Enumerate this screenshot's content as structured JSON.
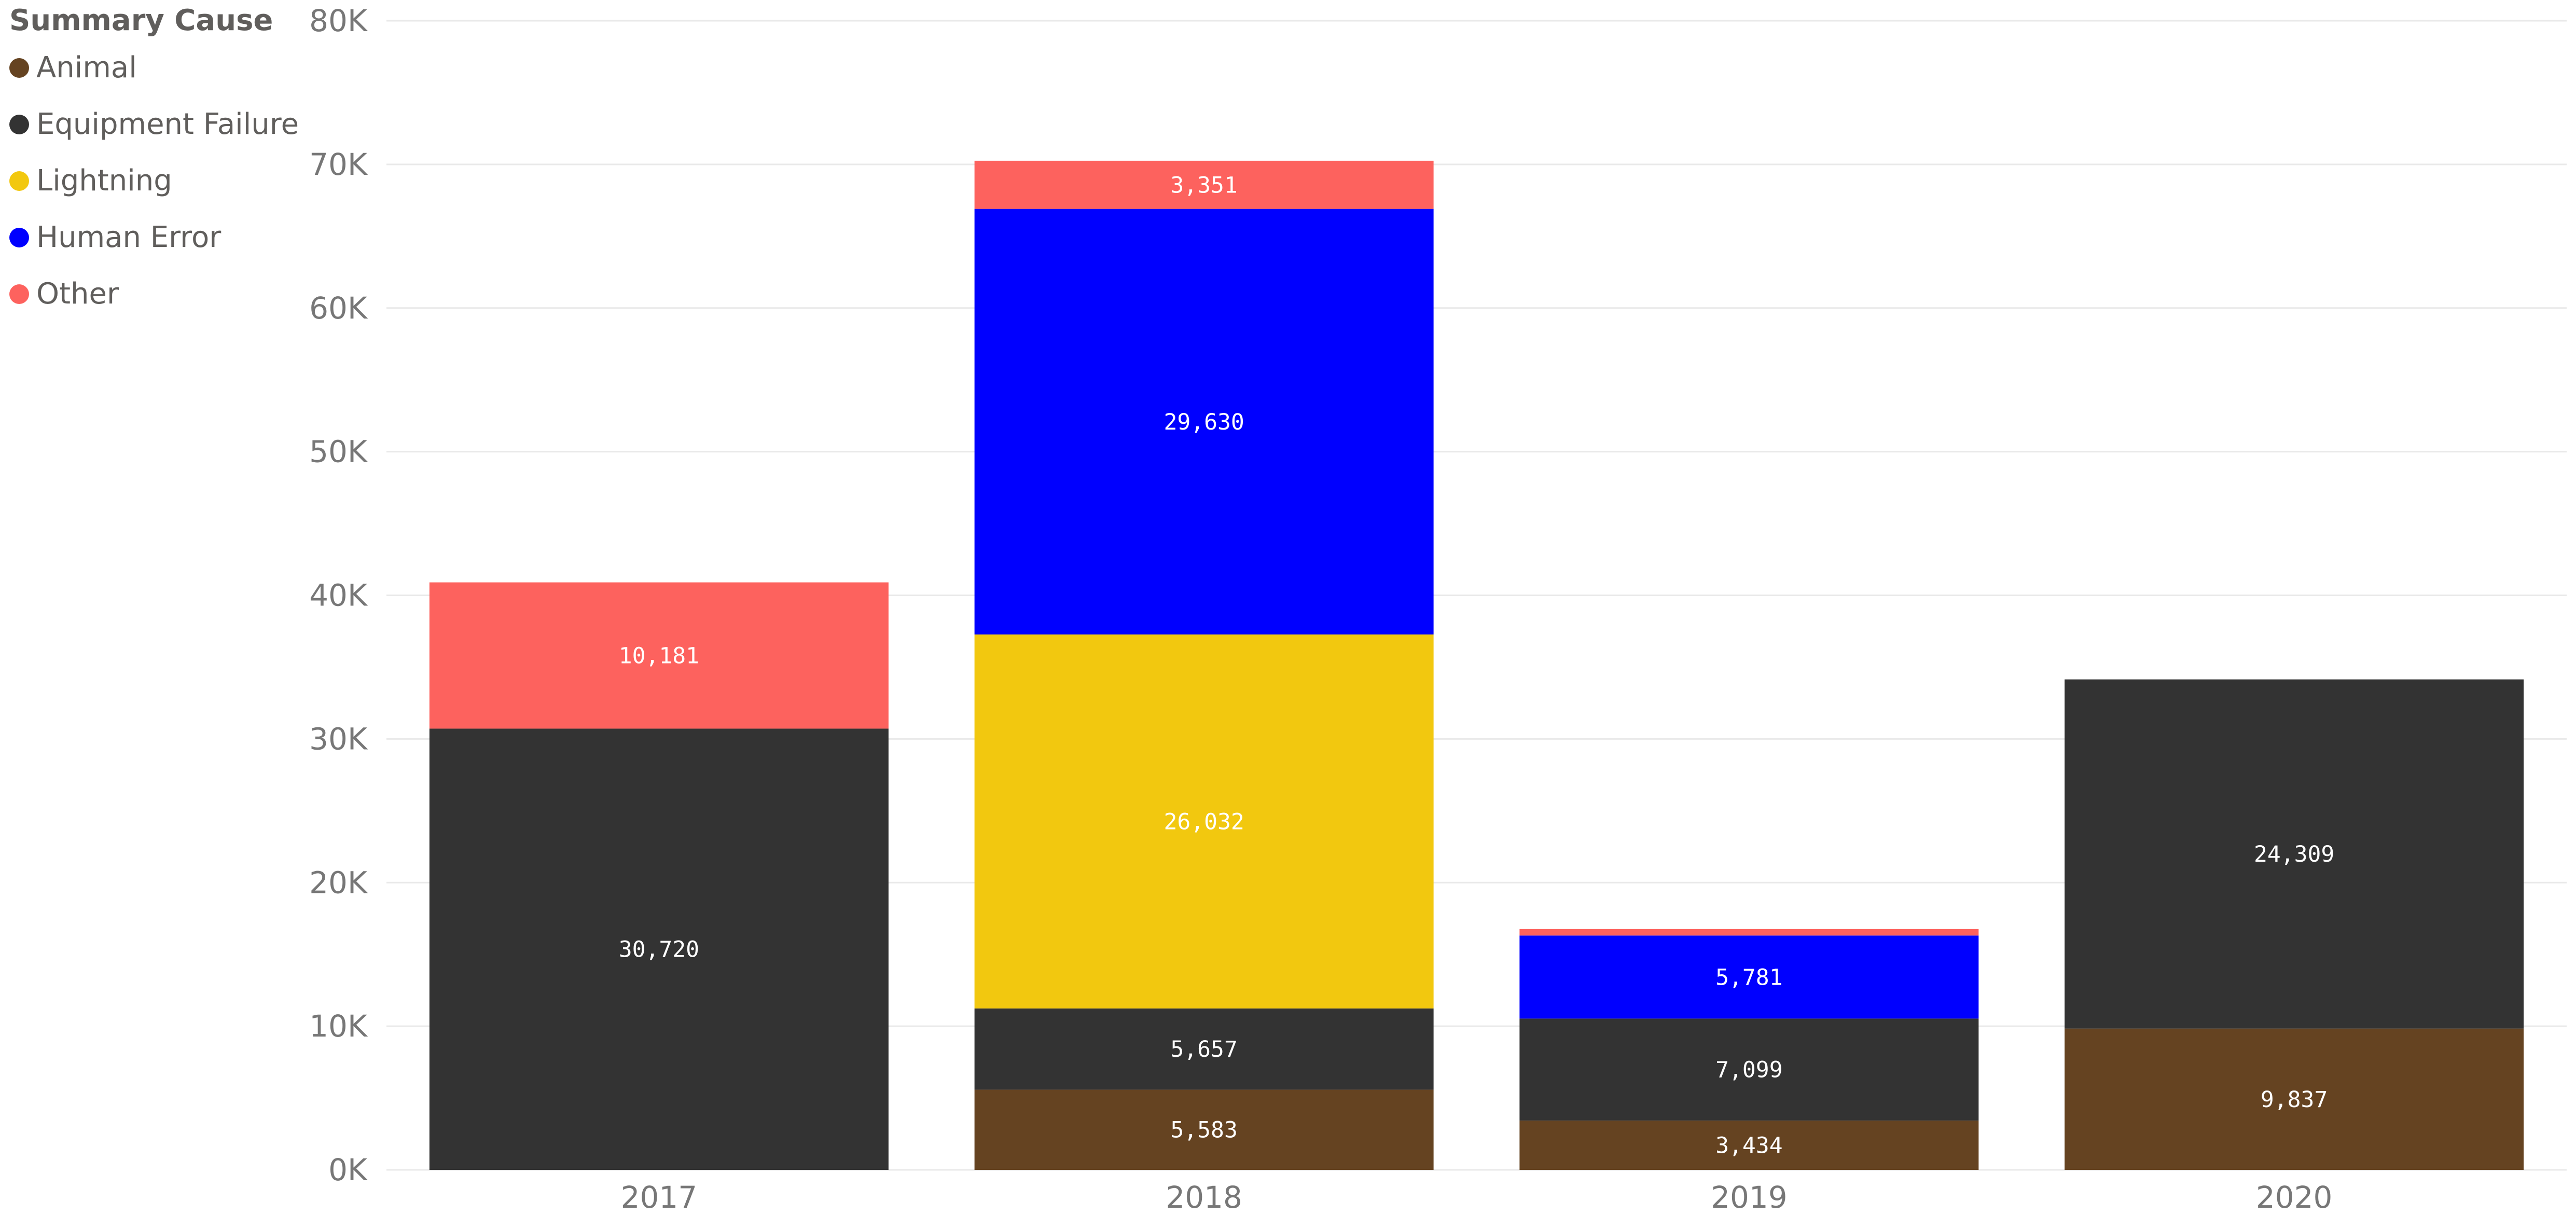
{
  "chart_data": {
    "type": "bar",
    "stacked": true,
    "legend_title": "Summary Cause",
    "legend_position": "top-left",
    "categories": [
      "2017",
      "2018",
      "2019",
      "2020"
    ],
    "series": [
      {
        "name": "Animal",
        "color": "#654321",
        "values": [
          0,
          5583,
          3434,
          9837
        ],
        "labels": [
          "",
          "5,583",
          "3,434",
          "9,837"
        ]
      },
      {
        "name": "Equipment Failure",
        "color": "#333333",
        "values": [
          30720,
          5657,
          7099,
          24309
        ],
        "labels": [
          "30,720",
          "5,657",
          "7,099",
          "24,309"
        ]
      },
      {
        "name": "Lightning",
        "color": "#F2C80F",
        "values": [
          0,
          26032,
          0,
          0
        ],
        "labels": [
          "",
          "26,032",
          "",
          ""
        ]
      },
      {
        "name": "Human Error",
        "color": "#0000FF",
        "values": [
          0,
          29630,
          5781,
          0
        ],
        "labels": [
          "",
          "29,630",
          "5,781",
          ""
        ]
      },
      {
        "name": "Other",
        "color": "#FD625E",
        "values": [
          10181,
          3351,
          450,
          0
        ],
        "labels": [
          "10,181",
          "3,351",
          "",
          ""
        ]
      }
    ],
    "ylim": [
      0,
      80000
    ],
    "yticks": [
      {
        "value": 0,
        "label": "0K"
      },
      {
        "value": 10000,
        "label": "10K"
      },
      {
        "value": 20000,
        "label": "20K"
      },
      {
        "value": 30000,
        "label": "30K"
      },
      {
        "value": 40000,
        "label": "40K"
      },
      {
        "value": 50000,
        "label": "50K"
      },
      {
        "value": 60000,
        "label": "60K"
      },
      {
        "value": 70000,
        "label": "70K"
      },
      {
        "value": 80000,
        "label": "80K"
      }
    ],
    "grid": true,
    "xlabel": "",
    "ylabel": ""
  }
}
